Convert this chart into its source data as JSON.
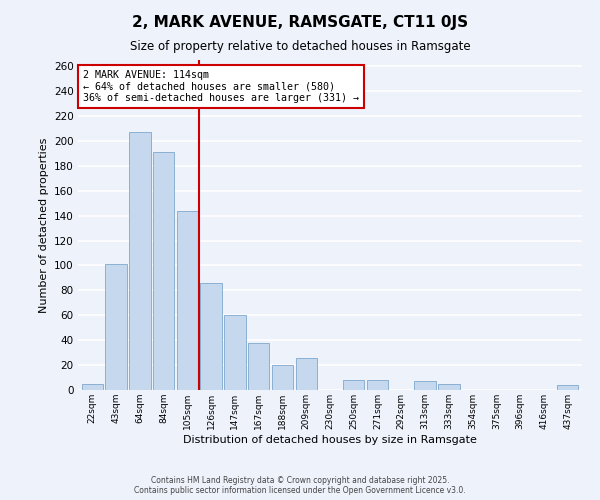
{
  "title": "2, MARK AVENUE, RAMSGATE, CT11 0JS",
  "subtitle": "Size of property relative to detached houses in Ramsgate",
  "xlabel": "Distribution of detached houses by size in Ramsgate",
  "ylabel": "Number of detached properties",
  "bar_labels": [
    "22sqm",
    "43sqm",
    "64sqm",
    "84sqm",
    "105sqm",
    "126sqm",
    "147sqm",
    "167sqm",
    "188sqm",
    "209sqm",
    "230sqm",
    "250sqm",
    "271sqm",
    "292sqm",
    "313sqm",
    "333sqm",
    "354sqm",
    "375sqm",
    "396sqm",
    "416sqm",
    "437sqm"
  ],
  "bar_values": [
    5,
    101,
    207,
    191,
    144,
    86,
    60,
    38,
    20,
    26,
    0,
    8,
    8,
    0,
    7,
    5,
    0,
    0,
    0,
    0,
    4
  ],
  "bar_color": "#c5d8ed",
  "bar_edge_color": "#7fa8cc",
  "bg_color": "#eef2fb",
  "grid_color": "#ffffff",
  "vline_x": 4.5,
  "vline_color": "#cc0000",
  "annotation_title": "2 MARK AVENUE: 114sqm",
  "annotation_line1": "← 64% of detached houses are smaller (580)",
  "annotation_line2": "36% of semi-detached houses are larger (331) →",
  "annotation_box_color": "#ffffff",
  "annotation_border_color": "#cc0000",
  "ylim": [
    0,
    265
  ],
  "yticks": [
    0,
    20,
    40,
    60,
    80,
    100,
    120,
    140,
    160,
    180,
    200,
    220,
    240,
    260
  ],
  "footer_line1": "Contains HM Land Registry data © Crown copyright and database right 2025.",
  "footer_line2": "Contains public sector information licensed under the Open Government Licence v3.0."
}
